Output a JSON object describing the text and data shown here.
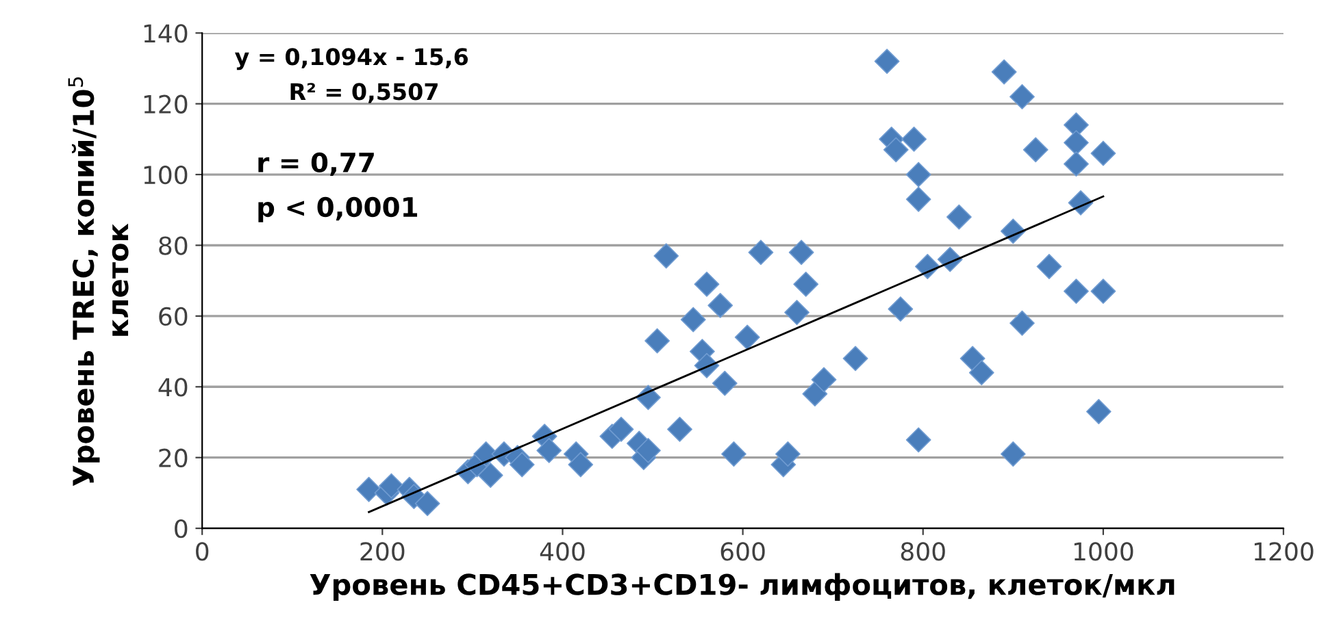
{
  "chart_data": {
    "type": "scatter",
    "xlabel": "Уровень CD45+CD3+CD19- лимфоцитов, клеток/мкл",
    "ylabel": "Уровень TREC, копий/10$^{5}$\nклеток",
    "xlim": [
      0,
      1200
    ],
    "xticks": [
      0,
      200,
      400,
      600,
      800,
      1000,
      1200
    ],
    "ylim": [
      0,
      140
    ],
    "yticks": [
      0,
      20,
      40,
      60,
      80,
      100,
      120,
      140
    ],
    "grid": "y",
    "legend": false,
    "series": [
      {
        "marker": "diamond",
        "color": "#4a7ebb",
        "x": [
          185,
          205,
          210,
          230,
          235,
          250,
          295,
          305,
          315,
          320,
          335,
          350,
          355,
          380,
          385,
          415,
          420,
          455,
          465,
          485,
          490,
          495,
          495,
          505,
          515,
          530,
          545,
          555,
          560,
          560,
          575,
          580,
          590,
          605,
          620,
          645,
          650,
          660,
          665,
          670,
          680,
          690,
          725,
          760,
          765,
          770,
          775,
          790,
          795,
          795,
          795,
          805,
          830,
          840,
          855,
          865,
          890,
          900,
          900,
          910,
          910,
          925,
          940,
          970,
          970,
          970,
          970,
          975,
          995,
          1000,
          1000
        ],
        "values": [
          11,
          10,
          12,
          11,
          9,
          7,
          16,
          18,
          21,
          15,
          21,
          20,
          18,
          26,
          22,
          21,
          18,
          26,
          28,
          24,
          20,
          22,
          37,
          53,
          77,
          28,
          59,
          50,
          46,
          69,
          63,
          41,
          21,
          54,
          78,
          18,
          21,
          61,
          78,
          69,
          38,
          42,
          48,
          132,
          110,
          107,
          62,
          110,
          100,
          93,
          25,
          74,
          76,
          88,
          48,
          44,
          129,
          84,
          21,
          58,
          122,
          107,
          74,
          114,
          109,
          103,
          67,
          92,
          33,
          106,
          67
        ]
      },
      {
        "type": "line",
        "color": "#000000",
        "x": [
          185,
          1000
        ],
        "values": [
          4.6,
          93.8
        ],
        "marker": "none",
        "line_style": "solid"
      }
    ],
    "annotations": [
      "y = 0,1094x - 15,6",
      "R² = 0,5507",
      "r = 0,77",
      "p < 0,0001"
    ]
  }
}
